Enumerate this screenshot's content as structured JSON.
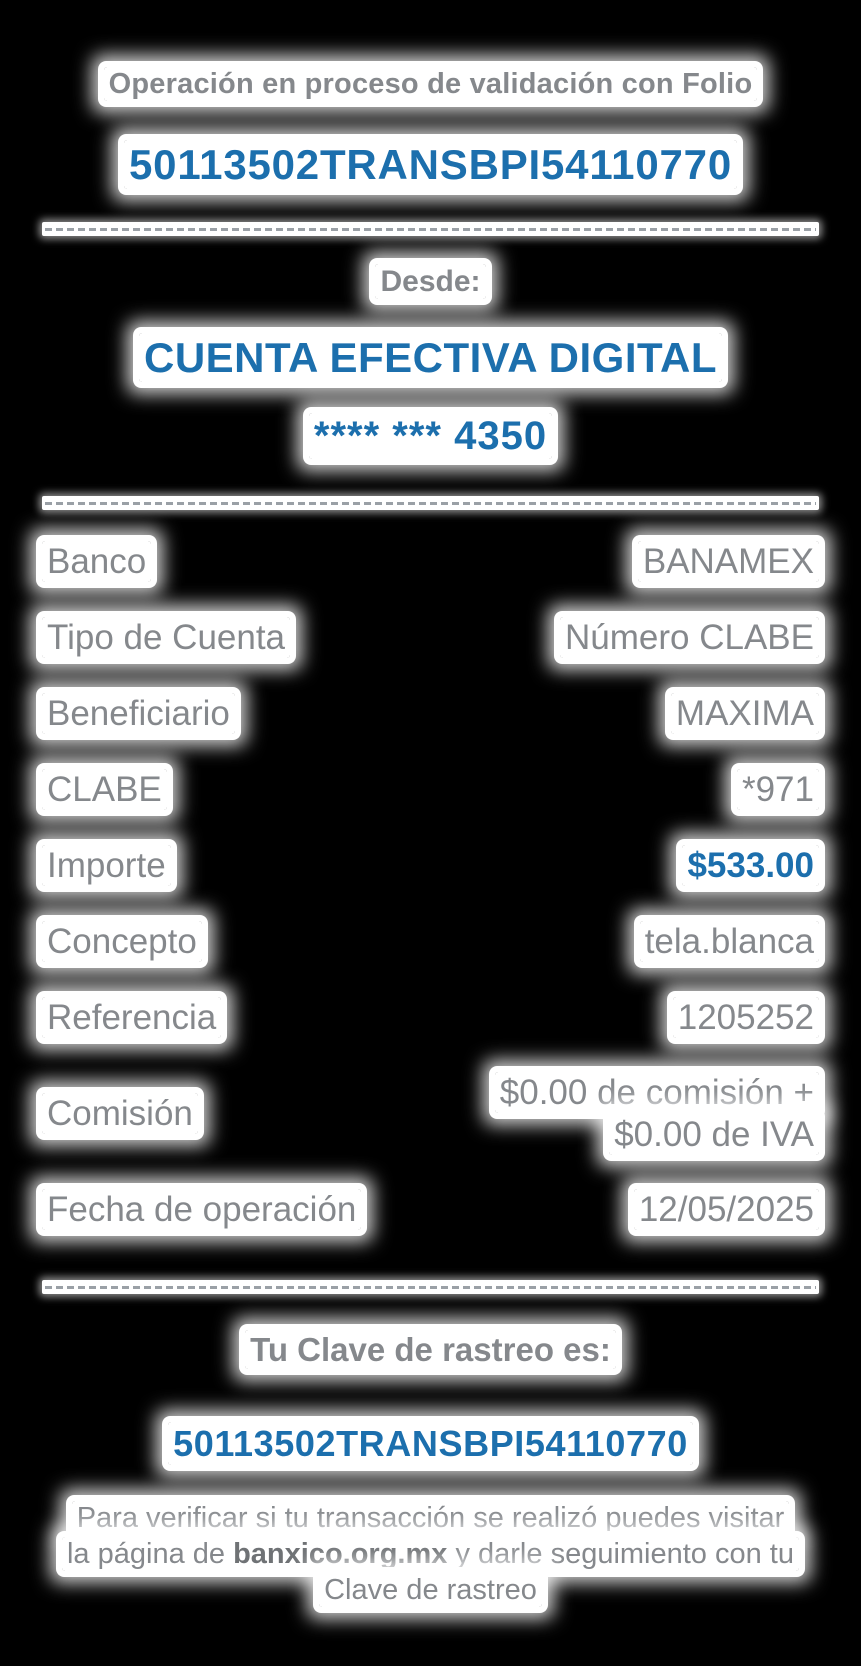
{
  "colors": {
    "accent": "#1c6fad",
    "label_gray": "#85888c",
    "note_link_gray": "#6f7275"
  },
  "header": {
    "status_text": "Operación en proceso de validación con Folio",
    "folio": "50113502TRANSBPI54110770"
  },
  "from": {
    "label": "Desde:",
    "account_name": "CUENTA EFECTIVA DIGITAL",
    "account_mask": "**** *** 4350"
  },
  "details": {
    "rows": [
      {
        "label": "Banco",
        "value": "BANAMEX"
      },
      {
        "label": "Tipo de Cuenta",
        "value": "Número CLABE"
      },
      {
        "label": "Beneficiario",
        "value": "MAXIMA"
      },
      {
        "label": "CLABE",
        "value": "*971"
      },
      {
        "label": "Importe",
        "value": "$533.00",
        "accent": true
      },
      {
        "label": "Concepto",
        "value": "tela.blanca"
      },
      {
        "label": "Referencia",
        "value": "1205252"
      },
      {
        "label": "Comisión",
        "value": "$0.00 de comisión + $0.00 de IVA",
        "narrow": true
      },
      {
        "label": "Fecha de operación",
        "value": "12/05/2025"
      }
    ]
  },
  "tracking": {
    "title": "Tu Clave de rastreo es:",
    "key": "50113502TRANSBPI54110770"
  },
  "note": {
    "line1": "Para verificar si tu transacción se realizó puedes visitar",
    "line2_before": "la página de ",
    "link": "banxico.org.mx",
    "line2_after": " y darle seguimiento con tu",
    "line3": "Clave de rastreo"
  }
}
